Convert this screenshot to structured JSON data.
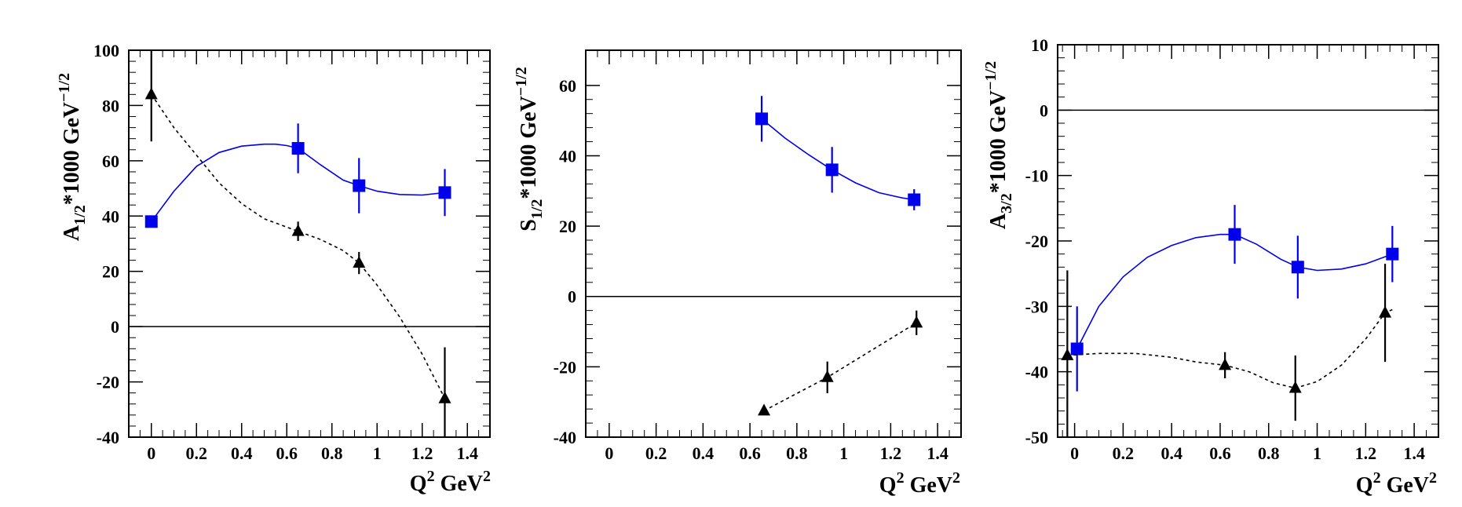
{
  "colors": {
    "model": "#0000ee",
    "data": "#000000"
  },
  "chart_data": [
    {
      "type": "scatter",
      "id": "a12",
      "ylabel_main": "A",
      "ylabel_sub": "1/2",
      "ylabel_rest": "*1000 GeV",
      "ylabel_sup": "−1/2",
      "xlabel_main": "Q",
      "xlabel_sup1": "2",
      "xlabel_rest": " GeV",
      "xlabel_sup2": "2",
      "xlim": [
        -0.1,
        1.5
      ],
      "ylim": [
        -40,
        100
      ],
      "xticks": [
        0,
        0.2,
        0.4,
        0.6,
        0.8,
        1,
        1.2,
        1.4
      ],
      "xtick_labels": [
        "0",
        "0.2",
        "0.4",
        "0.6",
        "0.8",
        "1",
        "1.2",
        "1.4"
      ],
      "yticks": [
        -40,
        -20,
        0,
        20,
        40,
        60,
        80,
        100
      ],
      "ytick_labels": [
        "-40",
        "-20",
        "0",
        "20",
        "40",
        "60",
        "80",
        "100"
      ],
      "zero_line": true,
      "series": [
        {
          "name": "blue squares",
          "marker": "square",
          "color": "#0000ee",
          "points": [
            [
              0.0,
              38,
              0
            ],
            [
              0.65,
              64.5,
              9
            ],
            [
              0.92,
              51,
              10
            ],
            [
              1.3,
              48.5,
              8.5
            ]
          ],
          "curve": [
            [
              0.0,
              38
            ],
            [
              0.1,
              49
            ],
            [
              0.2,
              58
            ],
            [
              0.3,
              63
            ],
            [
              0.4,
              65.3
            ],
            [
              0.5,
              66
            ],
            [
              0.55,
              66
            ],
            [
              0.6,
              65.5
            ],
            [
              0.65,
              64.5
            ],
            [
              0.75,
              58.5
            ],
            [
              0.85,
              53
            ],
            [
              0.92,
              51
            ],
            [
              1.0,
              49
            ],
            [
              1.1,
              47.8
            ],
            [
              1.2,
              47.6
            ],
            [
              1.3,
              48.5
            ]
          ]
        },
        {
          "name": "black triangles",
          "marker": "triangle",
          "color": "#000000",
          "points": [
            [
              0.0,
              84,
              17
            ],
            [
              0.65,
              34.5,
              3.5
            ],
            [
              0.92,
              23,
              4
            ],
            [
              1.3,
              -26,
              18.5
            ]
          ],
          "curve": [
            [
              0.0,
              84
            ],
            [
              0.1,
              72
            ],
            [
              0.2,
              62
            ],
            [
              0.3,
              52
            ],
            [
              0.4,
              44.5
            ],
            [
              0.5,
              39
            ],
            [
              0.6,
              36
            ],
            [
              0.65,
              34.5
            ],
            [
              0.75,
              31.5
            ],
            [
              0.85,
              27.5
            ],
            [
              0.92,
              23
            ],
            [
              1.0,
              15
            ],
            [
              1.1,
              3.5
            ],
            [
              1.2,
              -10
            ],
            [
              1.3,
              -26
            ]
          ]
        }
      ]
    },
    {
      "type": "scatter",
      "id": "s12",
      "ylabel_main": "S",
      "ylabel_sub": "1/2",
      "ylabel_rest": "*1000 GeV",
      "ylabel_sup": "−1/2",
      "xlabel_main": "Q",
      "xlabel_sup1": "2",
      "xlabel_rest": " GeV",
      "xlabel_sup2": "2",
      "xlim": [
        -0.1,
        1.5
      ],
      "ylim": [
        -40,
        70
      ],
      "xticks": [
        0,
        0.2,
        0.4,
        0.6,
        0.8,
        1,
        1.2,
        1.4
      ],
      "xtick_labels": [
        "0",
        "0.2",
        "0.4",
        "0.6",
        "0.8",
        "1",
        "1.2",
        "1.4"
      ],
      "yticks": [
        -40,
        -20,
        0,
        20,
        40,
        60
      ],
      "ytick_labels": [
        "-40",
        "-20",
        "0",
        "20",
        "40",
        "60"
      ],
      "zero_line": true,
      "series": [
        {
          "name": "blue squares",
          "marker": "square",
          "color": "#0000ee",
          "points": [
            [
              0.65,
              50.5,
              6.5
            ],
            [
              0.95,
              36,
              6.5
            ],
            [
              1.3,
              27.5,
              3
            ]
          ],
          "curve": [
            [
              0.65,
              50.5
            ],
            [
              0.75,
              45
            ],
            [
              0.85,
              40.3
            ],
            [
              0.95,
              36
            ],
            [
              1.05,
              32.3
            ],
            [
              1.15,
              29.5
            ],
            [
              1.25,
              28
            ],
            [
              1.3,
              27.5
            ]
          ]
        },
        {
          "name": "black triangles",
          "marker": "triangle",
          "color": "#000000",
          "points": [
            [
              0.66,
              -32.5,
              0
            ],
            [
              0.93,
              -23,
              4.5
            ],
            [
              1.31,
              -7.5,
              3.5
            ]
          ],
          "curve": [
            [
              0.66,
              -32.5
            ],
            [
              0.93,
              -23
            ],
            [
              1.31,
              -7.5
            ]
          ]
        }
      ]
    },
    {
      "type": "scatter",
      "id": "a32",
      "ylabel_main": "A",
      "ylabel_sub": "3/2",
      "ylabel_rest": "*1000 GeV",
      "ylabel_sup": "−1/2",
      "xlabel_main": "Q",
      "xlabel_sup1": "2",
      "xlabel_rest": " GeV",
      "xlabel_sup2": "2",
      "xlim": [
        -0.07,
        1.5
      ],
      "ylim": [
        -50,
        10
      ],
      "xticks": [
        0,
        0.2,
        0.4,
        0.6,
        0.8,
        1,
        1.2,
        1.4
      ],
      "xtick_labels": [
        "0",
        "0.2",
        "0.4",
        "0.6",
        "0.8",
        "1",
        "1.2",
        "1.4"
      ],
      "yticks": [
        -50,
        -40,
        -30,
        -20,
        -10,
        0,
        10
      ],
      "ytick_labels": [
        "-50",
        "-40",
        "-30",
        "-20",
        "-10",
        "0",
        "10"
      ],
      "zero_line": true,
      "series": [
        {
          "name": "blue squares",
          "marker": "square",
          "color": "#0000ee",
          "points": [
            [
              0.01,
              -36.5,
              6.5
            ],
            [
              0.66,
              -19,
              4.5
            ],
            [
              0.92,
              -24,
              4.8
            ],
            [
              1.31,
              -22,
              4.3
            ]
          ],
          "curve": [
            [
              0.01,
              -36.5
            ],
            [
              0.1,
              -30
            ],
            [
              0.2,
              -25.5
            ],
            [
              0.3,
              -22.5
            ],
            [
              0.4,
              -20.7
            ],
            [
              0.5,
              -19.5
            ],
            [
              0.6,
              -19
            ],
            [
              0.66,
              -19
            ],
            [
              0.75,
              -20.5
            ],
            [
              0.85,
              -22.8
            ],
            [
              0.92,
              -24
            ],
            [
              1.0,
              -24.5
            ],
            [
              1.1,
              -24.3
            ],
            [
              1.2,
              -23.5
            ],
            [
              1.31,
              -22
            ]
          ]
        },
        {
          "name": "black triangles",
          "marker": "triangle",
          "color": "#000000",
          "points": [
            [
              -0.03,
              -37.5,
              13
            ],
            [
              0.62,
              -39,
              2
            ],
            [
              0.91,
              -42.5,
              5
            ],
            [
              1.28,
              -31,
              7.5
            ]
          ],
          "curve": [
            [
              -0.03,
              -37.5
            ],
            [
              0.1,
              -37.2
            ],
            [
              0.25,
              -37.2
            ],
            [
              0.4,
              -37.8
            ],
            [
              0.5,
              -38.5
            ],
            [
              0.62,
              -39
            ],
            [
              0.72,
              -40
            ],
            [
              0.82,
              -41.7
            ],
            [
              0.91,
              -42.5
            ],
            [
              1.0,
              -41.5
            ],
            [
              1.1,
              -39
            ],
            [
              1.2,
              -35
            ],
            [
              1.28,
              -31
            ],
            [
              1.31,
              -30.5
            ]
          ]
        }
      ]
    }
  ]
}
